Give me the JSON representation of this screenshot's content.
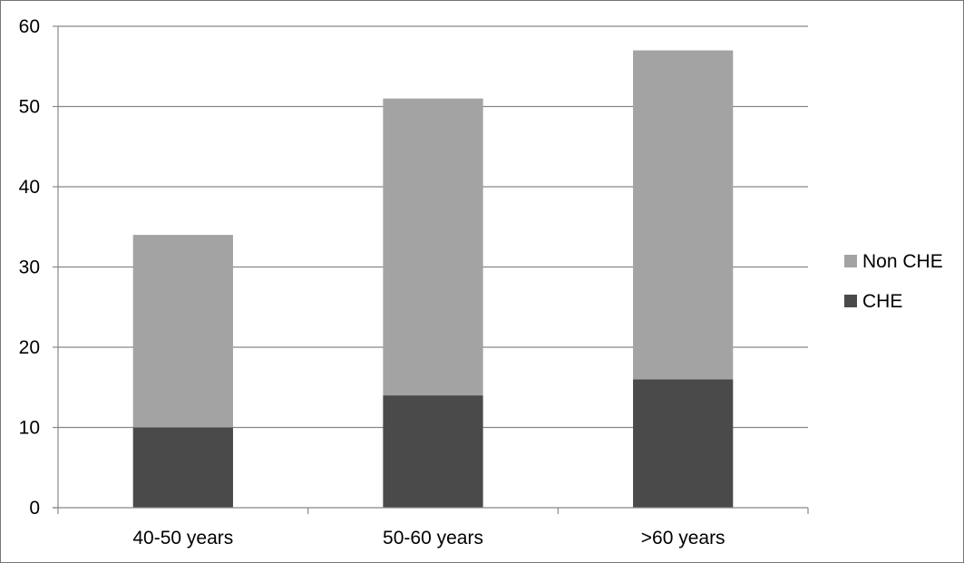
{
  "chart_data": {
    "type": "bar",
    "stacked": true,
    "categories": [
      "40-50 years",
      "50-60 years",
      ">60 years"
    ],
    "series": [
      {
        "name": "CHE",
        "values": [
          10,
          14,
          16
        ],
        "color": "#4a4a4a"
      },
      {
        "name": "Non CHE",
        "values": [
          24,
          37,
          41
        ],
        "color": "#a3a3a3"
      }
    ],
    "title": "",
    "xlabel": "",
    "ylabel": "",
    "ylim": [
      0,
      60
    ],
    "yticks": [
      0,
      10,
      20,
      30,
      40,
      50,
      60
    ],
    "grid": true,
    "legend": {
      "position": "right",
      "entries": [
        "Non CHE",
        "CHE"
      ]
    }
  }
}
